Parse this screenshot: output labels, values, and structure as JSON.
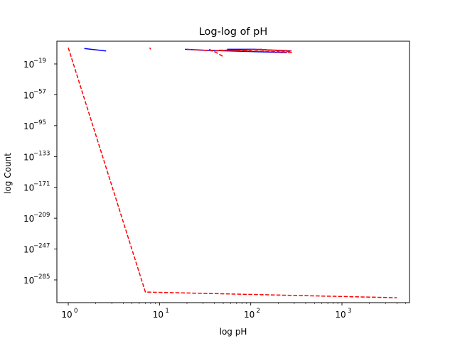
{
  "chart_data": {
    "type": "line",
    "title": "Log-log of pH",
    "xlabel": "log pH",
    "ylabel": "log Count",
    "x_scale": "log",
    "y_scale": "log",
    "xlim": [
      0.75,
      5500
    ],
    "ylim_exponent": [
      -313,
      9
    ],
    "grid": false,
    "x_ticks": [
      {
        "value": 1,
        "base": "10",
        "exp": "0"
      },
      {
        "value": 10,
        "base": "10",
        "exp": "1"
      },
      {
        "value": 100,
        "base": "10",
        "exp": "2"
      },
      {
        "value": 1000,
        "base": "10",
        "exp": "3"
      }
    ],
    "y_ticks": [
      {
        "exp_value": -19,
        "base": "10",
        "exp": "−19"
      },
      {
        "exp_value": -57,
        "base": "10",
        "exp": "−57"
      },
      {
        "exp_value": -95,
        "base": "10",
        "exp": "−95"
      },
      {
        "exp_value": -133,
        "base": "10",
        "exp": "−133"
      },
      {
        "exp_value": -171,
        "base": "10",
        "exp": "−171"
      },
      {
        "exp_value": -209,
        "base": "10",
        "exp": "−209"
      },
      {
        "exp_value": -247,
        "base": "10",
        "exp": "−247"
      },
      {
        "exp_value": -285,
        "base": "10",
        "exp": "−285"
      }
    ],
    "series": [
      {
        "color": "#0000ff",
        "style": "solid",
        "segments": [
          [
            [
              1.5,
              0
            ],
            [
              2.6,
              -3
            ]
          ],
          [
            [
              19,
              -1
            ],
            [
              30,
              -2
            ],
            [
              60,
              -3
            ],
            [
              120,
              -4
            ],
            [
              250,
              -5
            ]
          ],
          [
            [
              55,
              -1
            ],
            [
              110,
              -1
            ],
            [
              180,
              -2
            ],
            [
              280,
              -3
            ]
          ]
        ]
      },
      {
        "color": "#ff0000",
        "style": "dashed",
        "segments": [
          [
            [
              1.0,
              1
            ],
            [
              7.0,
              -300
            ],
            [
              4000,
              -307
            ]
          ],
          [
            [
              7.8,
              1
            ],
            [
              8.0,
              -1
            ]
          ],
          [
            [
              20,
              -1
            ],
            [
              40,
              -3
            ],
            [
              60,
              -2
            ],
            [
              100,
              -3
            ],
            [
              200,
              -4
            ],
            [
              290,
              -5
            ]
          ],
          [
            [
              35,
              -1
            ],
            [
              42,
              -5
            ],
            [
              50,
              -10
            ]
          ],
          [
            [
              90,
              -1
            ],
            [
              92,
              -4
            ]
          ],
          [
            [
              100,
              -1
            ],
            [
              150,
              -2
            ],
            [
              200,
              -2
            ],
            [
              280,
              -3
            ]
          ],
          [
            [
              45,
              -2
            ],
            [
              75,
              -2
            ],
            [
              130,
              -1
            ],
            [
              270,
              -4
            ]
          ]
        ]
      }
    ]
  }
}
